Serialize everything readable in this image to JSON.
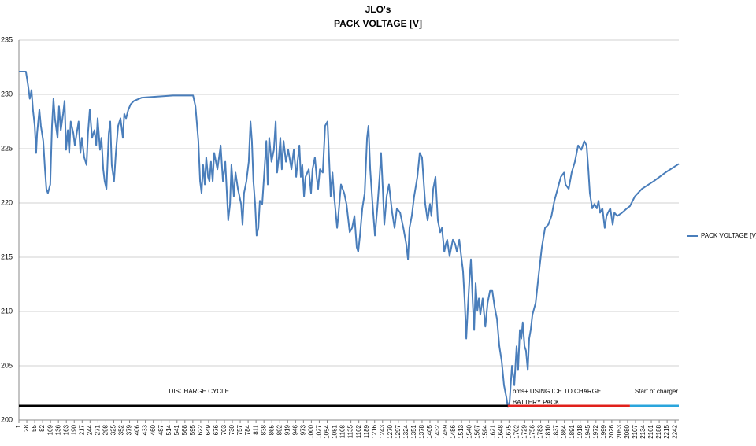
{
  "chart_data": {
    "type": "line",
    "title": "JLO's",
    "subtitle": "PACK VOLTAGE [V]",
    "x": [
      1,
      25,
      33,
      38,
      44,
      49,
      55,
      60,
      63,
      71,
      76,
      84,
      90,
      95,
      100,
      108,
      114,
      119,
      124,
      133,
      138,
      144,
      152,
      157,
      162,
      168,
      173,
      178,
      187,
      192,
      200,
      205,
      211,
      216,
      224,
      232,
      237,
      243,
      251,
      259,
      265,
      270,
      278,
      283,
      289,
      294,
      300,
      308,
      313,
      318,
      326,
      332,
      340,
      348,
      356,
      361,
      367,
      375,
      383,
      394,
      421,
      474,
      528,
      596,
      604,
      614,
      620,
      625,
      630,
      636,
      641,
      647,
      652,
      657,
      663,
      668,
      679,
      690,
      698,
      706,
      716,
      722,
      727,
      735,
      741,
      749,
      760,
      765,
      770,
      778,
      786,
      792,
      797,
      802,
      808,
      813,
      819,
      824,
      832,
      840,
      846,
      851,
      856,
      864,
      872,
      878,
      883,
      889,
      894,
      899,
      905,
      913,
      921,
      932,
      940,
      948,
      953,
      959,
      964,
      969,
      975,
      980,
      991,
      999,
      1004,
      1012,
      1018,
      1023,
      1029,
      1039,
      1047,
      1055,
      1061,
      1066,
      1072,
      1077,
      1088,
      1093,
      1101,
      1112,
      1120,
      1131,
      1139,
      1147,
      1155,
      1160,
      1166,
      1174,
      1182,
      1190,
      1195,
      1201,
      1209,
      1217,
      1225,
      1233,
      1238,
      1244,
      1249,
      1257,
      1265,
      1276,
      1284,
      1292,
      1303,
      1314,
      1324,
      1330,
      1335,
      1343,
      1351,
      1362,
      1370,
      1378,
      1389,
      1397,
      1405,
      1410,
      1416,
      1424,
      1432,
      1440,
      1446,
      1454,
      1459,
      1464,
      1472,
      1483,
      1491,
      1497,
      1505,
      1510,
      1518,
      1524,
      1529,
      1534,
      1540,
      1545,
      1551,
      1556,
      1561,
      1567,
      1572,
      1577,
      1585,
      1594,
      1602,
      1610,
      1618,
      1626,
      1634,
      1642,
      1650,
      1658,
      1666,
      1671,
      1677,
      1685,
      1693,
      1701,
      1706,
      1712,
      1717,
      1722,
      1728,
      1733,
      1739,
      1744,
      1749,
      1755,
      1766,
      1776,
      1787,
      1798,
      1809,
      1820,
      1830,
      1841,
      1852,
      1863,
      1868,
      1879,
      1889,
      1900,
      1911,
      1922,
      1932,
      1940,
      1946,
      1951,
      1959,
      1967,
      1975,
      1981,
      1986,
      1994,
      2002,
      2008,
      2013,
      2021,
      2029,
      2035,
      2045,
      2061,
      2078,
      2088,
      2105,
      2129,
      2169,
      2209,
      2255
    ],
    "series": [
      {
        "name": "PACK VOLTAGE [V]",
        "color": "#4a7ebb",
        "values": [
          232.1,
          232.1,
          230.7,
          229.6,
          230.4,
          228.6,
          227.1,
          224.6,
          226.4,
          228.6,
          227.1,
          225.7,
          223.1,
          221.3,
          220.9,
          221.7,
          227.1,
          229.6,
          227.8,
          226.0,
          228.9,
          226.7,
          228.2,
          229.4,
          224.9,
          226.7,
          224.6,
          227.5,
          226.4,
          225.3,
          226.7,
          227.5,
          224.6,
          226.0,
          224.2,
          223.5,
          226.4,
          228.6,
          226.0,
          226.7,
          225.3,
          227.8,
          224.9,
          226.0,
          223.1,
          222.0,
          221.3,
          226.4,
          227.5,
          223.5,
          222.0,
          224.6,
          227.1,
          227.8,
          226.0,
          228.2,
          227.8,
          228.6,
          229.1,
          229.4,
          229.7,
          229.8,
          229.9,
          229.9,
          228.9,
          225.7,
          222.0,
          220.9,
          223.5,
          221.7,
          224.2,
          222.4,
          222.0,
          223.8,
          222.0,
          224.6,
          223.1,
          225.3,
          222.0,
          223.8,
          218.4,
          219.9,
          223.5,
          220.6,
          222.8,
          221.3,
          219.9,
          218.0,
          220.9,
          222.0,
          223.8,
          227.5,
          225.7,
          222.0,
          219.9,
          217.0,
          217.7,
          220.2,
          219.9,
          223.1,
          225.7,
          221.7,
          226.0,
          223.8,
          224.9,
          227.5,
          222.8,
          224.2,
          226.0,
          223.1,
          225.7,
          223.8,
          224.9,
          223.1,
          224.9,
          222.4,
          223.8,
          225.3,
          222.4,
          223.5,
          220.6,
          222.4,
          223.1,
          220.9,
          223.1,
          224.2,
          222.4,
          221.3,
          223.1,
          222.8,
          227.1,
          227.5,
          223.8,
          220.6,
          222.8,
          220.9,
          217.7,
          219.1,
          221.7,
          220.9,
          219.9,
          217.3,
          217.7,
          218.8,
          215.9,
          215.5,
          217.0,
          219.5,
          220.9,
          226.0,
          227.1,
          223.1,
          219.9,
          217.0,
          219.5,
          222.4,
          224.6,
          221.3,
          218.0,
          220.6,
          221.7,
          219.1,
          217.7,
          219.5,
          219.1,
          217.7,
          216.2,
          214.8,
          217.7,
          218.8,
          220.6,
          222.4,
          224.6,
          224.2,
          219.9,
          218.4,
          219.9,
          218.8,
          221.3,
          222.4,
          218.4,
          217.3,
          217.7,
          215.5,
          216.2,
          216.6,
          215.1,
          216.6,
          216.2,
          215.5,
          216.6,
          215.5,
          213.7,
          210.8,
          207.5,
          210.1,
          213.0,
          214.8,
          210.8,
          208.3,
          212.6,
          210.1,
          211.2,
          209.7,
          211.2,
          208.6,
          210.8,
          211.9,
          211.9,
          210.4,
          209.3,
          206.8,
          205.4,
          203.2,
          202.1,
          201.2,
          201.7,
          205.0,
          203.2,
          206.8,
          204.6,
          208.3,
          207.5,
          209.0,
          206.8,
          206.4,
          204.6,
          207.5,
          208.3,
          209.7,
          210.8,
          213.3,
          215.9,
          217.7,
          218.0,
          218.8,
          220.2,
          221.3,
          222.4,
          222.8,
          221.7,
          221.3,
          222.8,
          223.8,
          225.3,
          224.9,
          225.7,
          225.3,
          223.1,
          220.9,
          219.5,
          219.9,
          219.5,
          220.2,
          219.1,
          219.5,
          217.7,
          218.8,
          219.1,
          219.5,
          218.0,
          219.1,
          218.8,
          219.1,
          219.5,
          219.7,
          220.6,
          221.3,
          222.0,
          222.8,
          223.6
        ]
      }
    ],
    "xlim": [
      1,
      2255
    ],
    "xticks": [
      1,
      28,
      55,
      82,
      109,
      136,
      163,
      190,
      217,
      244,
      271,
      298,
      325,
      352,
      379,
      406,
      433,
      460,
      487,
      514,
      541,
      568,
      595,
      622,
      649,
      676,
      703,
      730,
      757,
      784,
      811,
      838,
      865,
      892,
      919,
      946,
      973,
      1000,
      1027,
      1054,
      1081,
      1108,
      1135,
      1162,
      1189,
      1216,
      1243,
      1270,
      1297,
      1324,
      1351,
      1378,
      1405,
      1432,
      1459,
      1486,
      1513,
      1540,
      1567,
      1594,
      1621,
      1648,
      1675,
      1702,
      1729,
      1756,
      1783,
      1810,
      1837,
      1864,
      1891,
      1918,
      1945,
      1972,
      1999,
      2026,
      2053,
      2080,
      2107,
      2134,
      2161,
      2188,
      2215,
      2242
    ],
    "ylim": [
      200,
      235
    ],
    "yticks": [
      200,
      205,
      210,
      215,
      220,
      225,
      230,
      235
    ],
    "grid": true,
    "legend": "right",
    "phases": [
      {
        "label": [
          "DISCHARGE CYCLE"
        ],
        "color": "#000000",
        "start": 1,
        "end": 1671,
        "level": 201.3
      },
      {
        "label": [
          "bms+ USING ICE TO CHARGE",
          "BATTERY PACK"
        ],
        "color": "#e0201b",
        "start": 1671,
        "end": 2088,
        "level": 201.3
      },
      {
        "label": [
          "Start of charger"
        ],
        "color": "#2aa5dc",
        "start": 2088,
        "end": 2255,
        "level": 201.3
      }
    ]
  }
}
